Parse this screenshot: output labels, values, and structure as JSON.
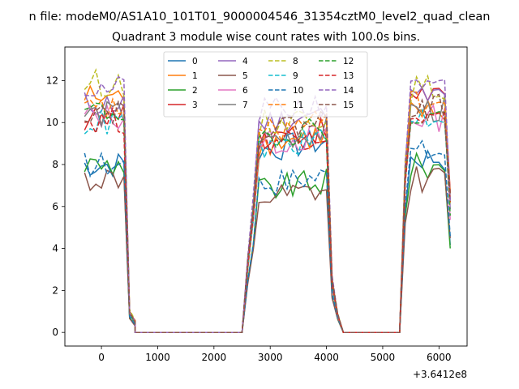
{
  "chart_data": {
    "type": "line",
    "suptitle": "n file: modeM0/AS1A10_101T01_9000004546_31354cztM0_level2_quad_clean",
    "title": "Quadrant 3 module wise count rates with 100.0s bins.",
    "xlabel": "",
    "ylabel": "",
    "x_offset_label": "+3.6412e8",
    "xlim": [
      -650,
      6500
    ],
    "ylim": [
      -0.65,
      13.6
    ],
    "xticks": [
      0,
      1000,
      2000,
      3000,
      4000,
      5000,
      6000
    ],
    "yticks": [
      0,
      2,
      4,
      6,
      8,
      10,
      12
    ],
    "grid": false,
    "legend": {
      "placement": "top-center",
      "columns": 4
    },
    "segments": [
      {
        "x_start": -300,
        "n": 10,
        "count": 10,
        "drop": [
          0.08,
          0.04
        ]
      },
      {
        "x_start": 2600,
        "n": 17,
        "count": 17,
        "rise": [
          0.35,
          0.62
        ],
        "drop": [
          0.25,
          0.08
        ]
      },
      {
        "x_start": 5400,
        "n": 9,
        "count": 9,
        "rise": [
          0.7
        ],
        "tail": 0.55
      }
    ],
    "zero_spans": [
      [
        600,
        2600
      ],
      [
        4300,
        5400
      ]
    ],
    "series": [
      {
        "name": "0",
        "color": "#1f77b4",
        "dash": false,
        "levels": [
          8.0,
          8.6,
          8.3
        ]
      },
      {
        "name": "1",
        "color": "#ff7f0e",
        "dash": false,
        "levels": [
          11.2,
          8.9,
          10.5
        ]
      },
      {
        "name": "2",
        "color": "#2ca02c",
        "dash": false,
        "levels": [
          8.0,
          6.7,
          7.9
        ]
      },
      {
        "name": "3",
        "color": "#d62728",
        "dash": false,
        "levels": [
          10.2,
          9.2,
          11.4
        ]
      },
      {
        "name": "4",
        "color": "#9467bd",
        "dash": false,
        "levels": [
          10.9,
          9.9,
          11.2
        ]
      },
      {
        "name": "5",
        "color": "#8c564b",
        "dash": false,
        "levels": [
          7.3,
          6.2,
          7.3
        ]
      },
      {
        "name": "6",
        "color": "#e377c2",
        "dash": false,
        "levels": [
          10.3,
          8.9,
          10.2
        ]
      },
      {
        "name": "7",
        "color": "#7f7f7f",
        "dash": false,
        "levels": [
          10.4,
          9.1,
          10.6
        ]
      },
      {
        "name": "8",
        "color": "#bcbd22",
        "dash": true,
        "levels": [
          11.9,
          9.9,
          11.6
        ]
      },
      {
        "name": "9",
        "color": "#17becf",
        "dash": true,
        "levels": [
          10.0,
          8.7,
          10.3
        ]
      },
      {
        "name": "10",
        "color": "#1f77b4",
        "dash": true,
        "levels": [
          8.0,
          7.0,
          8.6
        ]
      },
      {
        "name": "11",
        "color": "#ff7f0e",
        "dash": true,
        "levels": [
          10.6,
          9.5,
          10.9
        ]
      },
      {
        "name": "12",
        "color": "#2ca02c",
        "dash": true,
        "levels": [
          10.5,
          9.3,
          10.3
        ]
      },
      {
        "name": "13",
        "color": "#d62728",
        "dash": true,
        "levels": [
          10.1,
          9.0,
          10.1
        ]
      },
      {
        "name": "14",
        "color": "#9467bd",
        "dash": true,
        "levels": [
          11.6,
          10.4,
          11.5
        ]
      },
      {
        "name": "15",
        "color": "#8c564b",
        "dash": true,
        "levels": [
          10.6,
          9.6,
          10.7
        ]
      }
    ]
  }
}
